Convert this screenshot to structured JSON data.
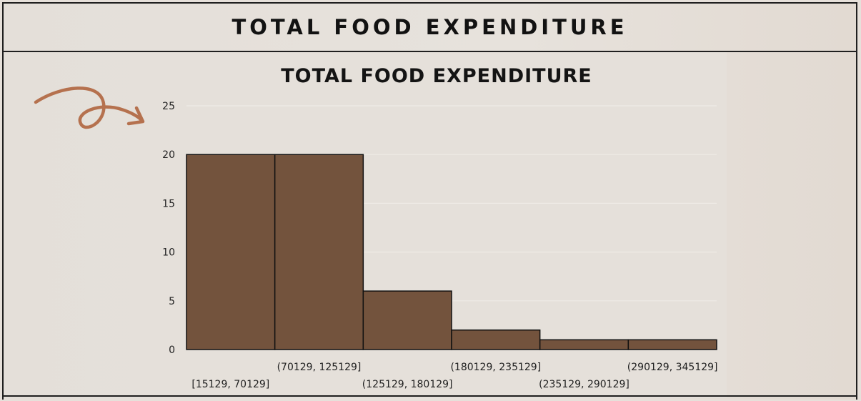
{
  "header": {
    "title": "TOTAL FOOD EXPENDITURE"
  },
  "decoration": {
    "arrow_icon": "curly-arrow-icon",
    "arrow_color": "#b5714e"
  },
  "chart_data": {
    "type": "bar",
    "title": "TOTAL FOOD EXPENDITURE",
    "categories": [
      "[15129, 70129]",
      "(70129, 125129]",
      "(125129, 180129]",
      "(180129, 235129]",
      "(235129, 290129]",
      "(290129, 345129]"
    ],
    "values": [
      20,
      20,
      6,
      2,
      1,
      1
    ],
    "ylim": [
      0,
      25
    ],
    "yticks": [
      0,
      5,
      10,
      15,
      20,
      25
    ],
    "xlabel": "",
    "ylabel": "",
    "grid": true,
    "bar_color": "#73533d",
    "bar_edge_color": "#111111"
  }
}
